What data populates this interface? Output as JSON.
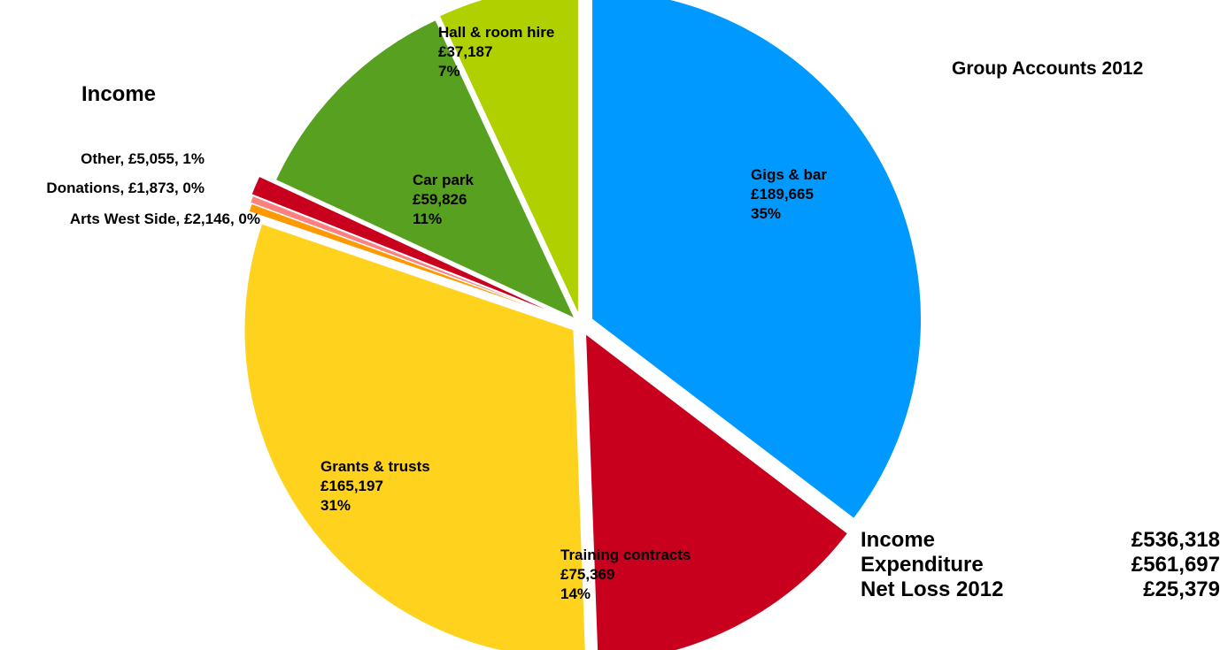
{
  "title": "Group Accounts 2012",
  "subtitle": "Income",
  "summary": [
    {
      "label": "Income",
      "value": "£536,318"
    },
    {
      "label": "Expenditure",
      "value": "£561,697"
    },
    {
      "label": "Net Loss 2012",
      "value": "£25,379"
    }
  ],
  "chart_data": {
    "type": "pie",
    "title": "Group Accounts 2012",
    "subtitle": "Income",
    "slices": [
      {
        "name": "Gigs & bar",
        "value": 189665,
        "value_label": "£189,665",
        "percent_label": "35%",
        "color": "#0099ff"
      },
      {
        "name": "Training contracts",
        "value": 75369,
        "value_label": "£75,369",
        "percent_label": "14%",
        "color": "#c8001e"
      },
      {
        "name": "Grants & trusts",
        "value": 165197,
        "value_label": "£165,197",
        "percent_label": "31%",
        "color": "#ffd21e"
      },
      {
        "name": "Arts West Side",
        "value": 2146,
        "value_label": "£2,146",
        "percent_label": "0%",
        "color": "#ff9900"
      },
      {
        "name": "Donations",
        "value": 1873,
        "value_label": "£1,873",
        "percent_label": "0%",
        "color": "#ff8080"
      },
      {
        "name": "Other",
        "value": 5055,
        "value_label": "£5,055",
        "percent_label": "1%",
        "color": "#c8001e"
      },
      {
        "name": "Car park",
        "value": 59826,
        "value_label": "£59,826",
        "percent_label": "11%",
        "color": "#58a020"
      },
      {
        "name": "Hall & room hire",
        "value": 37187,
        "value_label": "£37,187",
        "percent_label": "7%",
        "color": "#b0d000"
      }
    ]
  }
}
